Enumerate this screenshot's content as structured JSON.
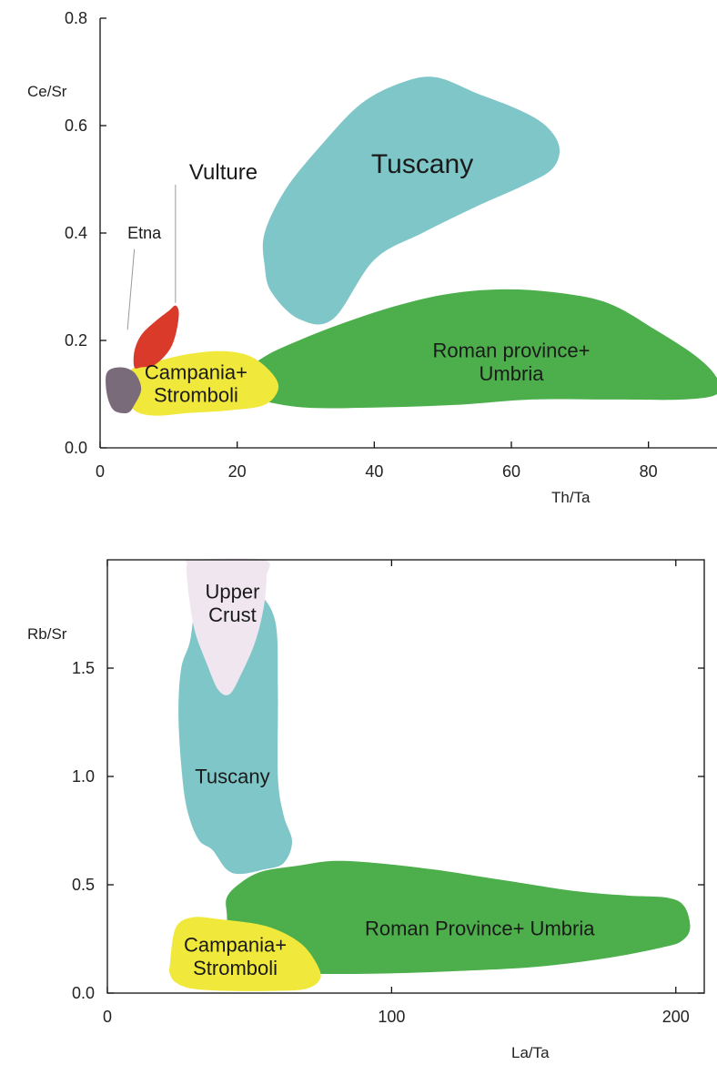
{
  "chart_data": [
    {
      "type": "scatter",
      "xlabel": "Th/Ta",
      "ylabel": "Ce/Sr",
      "xlim": [
        0,
        90
      ],
      "ylim": [
        0,
        0.8
      ],
      "xticks": [
        0,
        20,
        40,
        60,
        80
      ],
      "xtick_labels": [
        "0",
        "20",
        "40",
        "60",
        "80"
      ],
      "yticks": [
        0,
        0.2,
        0.4,
        0.6,
        0.8
      ],
      "ytick_labels": [
        "0.0",
        "0.2",
        "0.4",
        "0.6",
        "0.8"
      ],
      "regions": [
        {
          "key": "tuscany",
          "label": [
            "Tuscany"
          ],
          "color": "#7fc6c8",
          "outline": [
            [
              24,
              0.4
            ],
            [
              27,
              0.48
            ],
            [
              32,
              0.56
            ],
            [
              38,
              0.64
            ],
            [
              44,
              0.68
            ],
            [
              49,
              0.69
            ],
            [
              55,
              0.66
            ],
            [
              61,
              0.63
            ],
            [
              65,
              0.6
            ],
            [
              67,
              0.56
            ],
            [
              66,
              0.52
            ],
            [
              62,
              0.49
            ],
            [
              55,
              0.45
            ],
            [
              47,
              0.4
            ],
            [
              40,
              0.35
            ],
            [
              34,
              0.24
            ],
            [
              29,
              0.24
            ],
            [
              25,
              0.29
            ],
            [
              24,
              0.34
            ]
          ],
          "label_pos": [
            47,
            0.53
          ]
        },
        {
          "key": "roman",
          "label": [
            "Roman province+",
            "Umbria"
          ],
          "color": "#4caf4c",
          "outline": [
            [
              20,
              0.13
            ],
            [
              24,
              0.17
            ],
            [
              29,
              0.2
            ],
            [
              35,
              0.23
            ],
            [
              42,
              0.26
            ],
            [
              50,
              0.285
            ],
            [
              58,
              0.295
            ],
            [
              66,
              0.29
            ],
            [
              74,
              0.27
            ],
            [
              81,
              0.22
            ],
            [
              87,
              0.17
            ],
            [
              90,
              0.13
            ],
            [
              90,
              0.1
            ],
            [
              85,
              0.09
            ],
            [
              75,
              0.09
            ],
            [
              63,
              0.09
            ],
            [
              52,
              0.08
            ],
            [
              40,
              0.075
            ],
            [
              30,
              0.075
            ],
            [
              23,
              0.09
            ],
            [
              20,
              0.11
            ]
          ],
          "label_pos": [
            60,
            0.16
          ]
        },
        {
          "key": "campania",
          "label": [
            "Campania+",
            "Stromboli"
          ],
          "color": "#f0e83a",
          "outline": [
            [
              5,
              0.15
            ],
            [
              8,
              0.16
            ],
            [
              13,
              0.175
            ],
            [
              18,
              0.18
            ],
            [
              22,
              0.17
            ],
            [
              25,
              0.14
            ],
            [
              26,
              0.11
            ],
            [
              24,
              0.08
            ],
            [
              19,
              0.07
            ],
            [
              13,
              0.065
            ],
            [
              8,
              0.06
            ],
            [
              5,
              0.07
            ],
            [
              4,
              0.1
            ],
            [
              4,
              0.13
            ]
          ],
          "label_pos": [
            14,
            0.12
          ]
        },
        {
          "key": "vulture",
          "label": [],
          "color": "#d93a2a",
          "outline": [
            [
              5,
              0.15
            ],
            [
              5,
              0.18
            ],
            [
              6,
              0.21
            ],
            [
              8,
              0.235
            ],
            [
              10,
              0.255
            ],
            [
              11,
              0.265
            ],
            [
              11.5,
              0.25
            ],
            [
              11,
              0.21
            ],
            [
              10,
              0.18
            ],
            [
              8,
              0.155
            ],
            [
              6,
              0.15
            ]
          ],
          "label_pos": null
        },
        {
          "key": "etna",
          "label": [],
          "color": "#7a6b7a",
          "outline": [
            [
              1,
              0.14
            ],
            [
              3,
              0.15
            ],
            [
              5,
              0.14
            ],
            [
              6,
              0.11
            ],
            [
              5,
              0.08
            ],
            [
              4,
              0.065
            ],
            [
              2,
              0.07
            ],
            [
              1,
              0.1
            ]
          ],
          "label_pos": null
        }
      ],
      "annotations": [
        {
          "key": "vulture",
          "text": "Vulture",
          "pos": [
            13,
            0.5
          ],
          "leader": [
            [
              11,
              0.49
            ],
            [
              11,
              0.27
            ]
          ]
        },
        {
          "key": "etna",
          "text": "Etna",
          "pos": [
            4,
            0.39
          ],
          "leader": [
            [
              5,
              0.37
            ],
            [
              4,
              0.22
            ]
          ]
        }
      ]
    },
    {
      "type": "scatter",
      "xlabel": "La/Ta",
      "ylabel": "Rb/Sr",
      "xlim": [
        0,
        210
      ],
      "ylim": [
        0,
        2.0
      ],
      "xticks": [
        0,
        100,
        200
      ],
      "xtick_labels": [
        "0",
        "100",
        "200"
      ],
      "yticks": [
        0,
        0.5,
        1.0,
        1.5
      ],
      "ytick_labels": [
        "0.0",
        "0.5",
        "1.0",
        "1.5"
      ],
      "regions": [
        {
          "key": "tuscany2",
          "label": [
            "Tuscany"
          ],
          "color": "#7fc6c8",
          "outline": [
            [
              29,
              1.62
            ],
            [
              31,
              1.78
            ],
            [
              35,
              1.88
            ],
            [
              44,
              1.9
            ],
            [
              52,
              1.86
            ],
            [
              59,
              1.72
            ],
            [
              60,
              1.4
            ],
            [
              60,
              1.0
            ],
            [
              62,
              0.82
            ],
            [
              65,
              0.7
            ],
            [
              62,
              0.6
            ],
            [
              55,
              0.57
            ],
            [
              47,
              0.55
            ],
            [
              42,
              0.57
            ],
            [
              37,
              0.66
            ],
            [
              32,
              0.71
            ],
            [
              28,
              0.85
            ],
            [
              26,
              1.05
            ],
            [
              25,
              1.3
            ],
            [
              26,
              1.5
            ]
          ],
          "label_pos": [
            44,
            1.0
          ]
        },
        {
          "key": "crust",
          "label": [
            "Upper",
            "Crust"
          ],
          "color": "#efe6ef",
          "outline": [
            [
              28,
              1.92
            ],
            [
              28,
              1.98
            ],
            [
              30,
              2.0
            ],
            [
              55,
              2.0
            ],
            [
              56,
              1.92
            ],
            [
              55,
              1.78
            ],
            [
              52,
              1.62
            ],
            [
              47,
              1.47
            ],
            [
              43,
              1.38
            ],
            [
              39,
              1.4
            ],
            [
              35,
              1.52
            ],
            [
              31,
              1.66
            ],
            [
              29,
              1.8
            ]
          ],
          "label_pos": [
            44,
            1.8
          ]
        },
        {
          "key": "roman2",
          "label": [
            "Roman Province+ Umbria"
          ],
          "color": "#4caf4c",
          "outline": [
            [
              42,
              0.37
            ],
            [
              42,
              0.44
            ],
            [
              46,
              0.5
            ],
            [
              54,
              0.56
            ],
            [
              68,
              0.59
            ],
            [
              80,
              0.61
            ],
            [
              95,
              0.6
            ],
            [
              115,
              0.57
            ],
            [
              140,
              0.52
            ],
            [
              165,
              0.47
            ],
            [
              183,
              0.45
            ],
            [
              197,
              0.44
            ],
            [
              203,
              0.4
            ],
            [
              205,
              0.3
            ],
            [
              202,
              0.24
            ],
            [
              195,
              0.21
            ],
            [
              175,
              0.16
            ],
            [
              150,
              0.12
            ],
            [
              120,
              0.1
            ],
            [
              95,
              0.09
            ],
            [
              72,
              0.09
            ],
            [
              57,
              0.11
            ],
            [
              48,
              0.18
            ],
            [
              43,
              0.28
            ]
          ],
          "label_pos": [
            131,
            0.3
          ]
        },
        {
          "key": "campania2",
          "label": [
            "Campania+",
            "Stromboli"
          ],
          "color": "#f0e83a",
          "outline": [
            [
              22,
              0.13
            ],
            [
              24,
              0.3
            ],
            [
              30,
              0.35
            ],
            [
              40,
              0.34
            ],
            [
              52,
              0.32
            ],
            [
              60,
              0.29
            ],
            [
              68,
              0.23
            ],
            [
              73,
              0.15
            ],
            [
              75,
              0.07
            ],
            [
              70,
              0.02
            ],
            [
              58,
              0.01
            ],
            [
              43,
              0.01
            ],
            [
              30,
              0.02
            ],
            [
              24,
              0.05
            ],
            [
              22,
              0.09
            ]
          ],
          "label_pos": [
            45,
            0.17
          ]
        }
      ],
      "annotations": []
    }
  ]
}
